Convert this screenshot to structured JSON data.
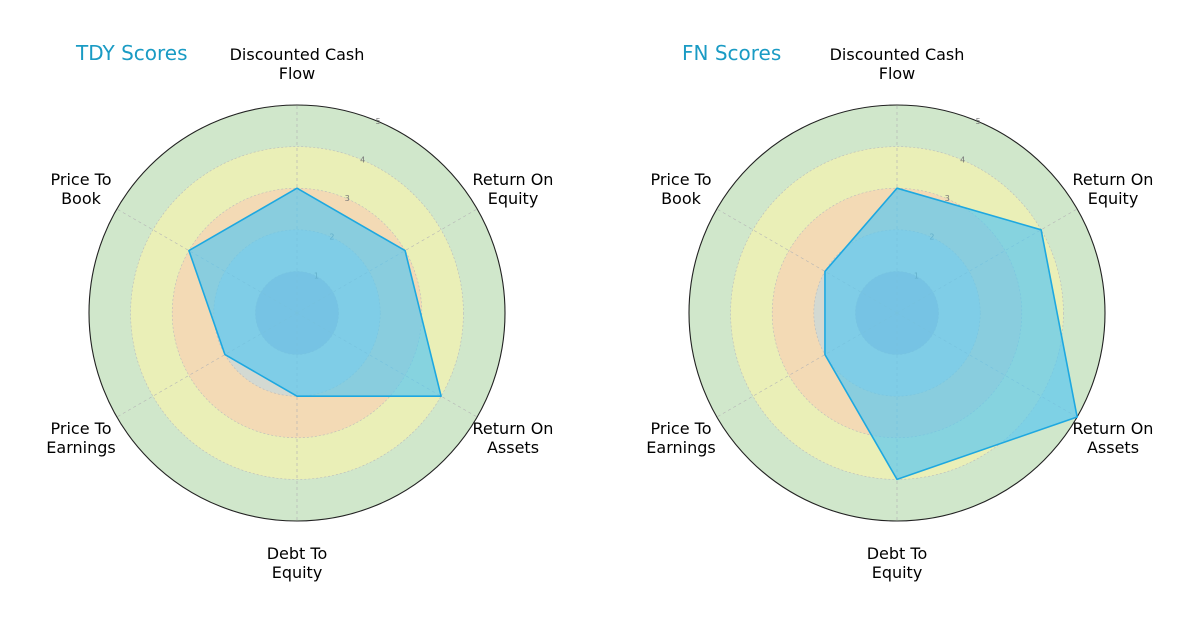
{
  "chart_data": [
    {
      "type": "radar",
      "title": "TDY Scores",
      "categories": [
        "Discounted Cash Flow",
        "Return On Equity",
        "Return On Assets",
        "Debt To Equity",
        "Price To Earnings",
        "Price To Book"
      ],
      "values": [
        3,
        3,
        4,
        2,
        2,
        3
      ],
      "rlim": [
        0,
        5
      ],
      "rticks": [
        1,
        2,
        3,
        4,
        5
      ]
    },
    {
      "type": "radar",
      "title": "FN Scores",
      "categories": [
        "Discounted Cash Flow",
        "Return On Equity",
        "Return On Assets",
        "Debt To Equity",
        "Price To Earnings",
        "Price To Book"
      ],
      "values": [
        3,
        4,
        5,
        4,
        2,
        2
      ],
      "rlim": [
        0,
        5
      ],
      "rticks": [
        1,
        2,
        3,
        4,
        5
      ]
    }
  ],
  "style": {
    "title_color": "#1a9bc4",
    "series_fill": "#5bc8f0",
    "series_stroke": "#1ea8e0",
    "band_colors": [
      "#9b9bbf",
      "#b8d8ea",
      "#f9c9b4",
      "#fff6a8",
      "#a9d3a1"
    ],
    "outline_color": "#222222"
  }
}
